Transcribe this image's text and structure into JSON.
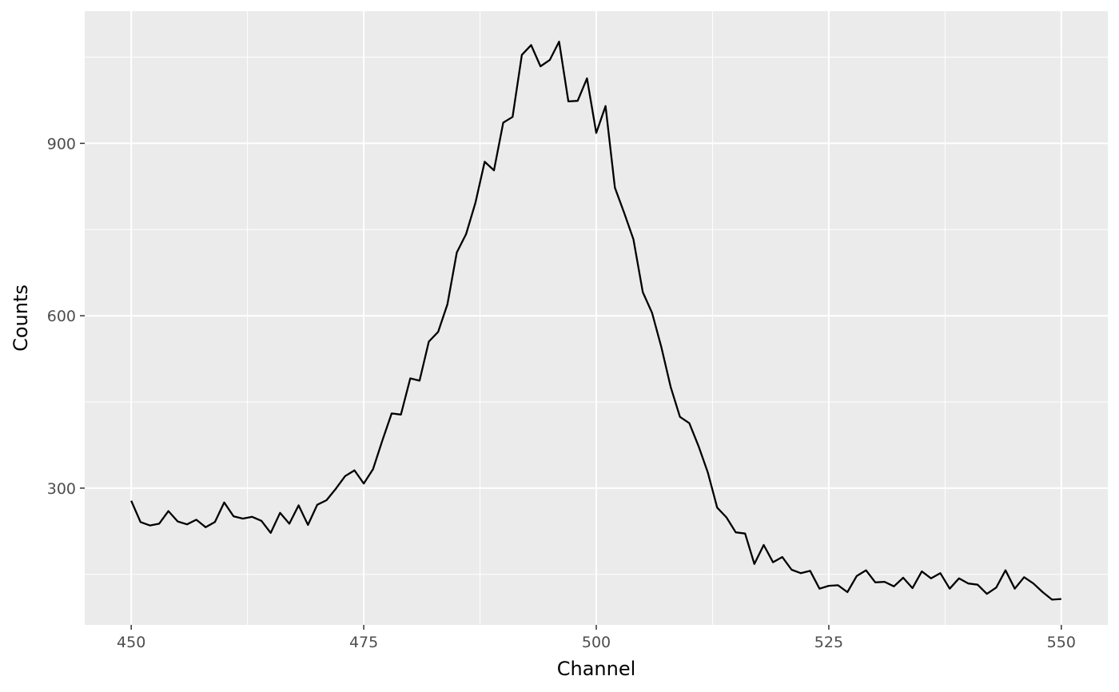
{
  "chart_data": {
    "type": "line",
    "title": "",
    "xlabel": "Channel",
    "ylabel": "Counts",
    "xlim": [
      445,
      555
    ],
    "ylim": [
      62,
      1130
    ],
    "x_ticks": [
      450,
      475,
      500,
      525,
      550
    ],
    "y_ticks": [
      300,
      600,
      900
    ],
    "x_minor_ticks": [
      462.5,
      487.5,
      512.5,
      537.5
    ],
    "y_minor_ticks": [
      150,
      450,
      750,
      1050
    ],
    "grid": true,
    "legend": "none",
    "colors": {
      "panel": "#ebebeb",
      "grid": "#ffffff",
      "line": "#000000",
      "tick_text": "#4d4d4d",
      "tick_mark": "#333333"
    },
    "series": [
      {
        "x": [
          450,
          451,
          452,
          453,
          454,
          455,
          456,
          457,
          458,
          459,
          460,
          461,
          462,
          463,
          464,
          465,
          466,
          467,
          468,
          469,
          470,
          471,
          472,
          473,
          474,
          475,
          476,
          477,
          478,
          479,
          480,
          481,
          482,
          483,
          484,
          485,
          486,
          487,
          488,
          489,
          490,
          491,
          492,
          493,
          494,
          495,
          496,
          497,
          498,
          499,
          500,
          501,
          502,
          503,
          504,
          505,
          506,
          507,
          508,
          509,
          510,
          511,
          512,
          513,
          514,
          515,
          516,
          517,
          518,
          519,
          520,
          521,
          522,
          523,
          524,
          525,
          526,
          527,
          528,
          529,
          530,
          531,
          532,
          533,
          534,
          535,
          536,
          537,
          538,
          539,
          540,
          541,
          542,
          543,
          544,
          545,
          546,
          547,
          548,
          549,
          550
        ],
        "y": [
          278,
          241,
          235,
          238,
          260,
          242,
          237,
          245,
          232,
          241,
          275,
          251,
          247,
          250,
          243,
          222,
          257,
          238,
          270,
          236,
          271,
          279,
          299,
          321,
          331,
          308,
          333,
          383,
          430,
          428,
          491,
          487,
          555,
          572,
          620,
          710,
          742,
          796,
          868,
          853,
          936,
          946,
          1054,
          1071,
          1034,
          1045,
          1077,
          973,
          974,
          1013,
          918,
          965,
          823,
          779,
          733,
          641,
          605,
          545,
          476,
          424,
          413,
          373,
          327,
          266,
          249,
          223,
          221,
          168,
          201,
          171,
          180,
          158,
          152,
          156,
          125,
          130,
          131,
          119,
          147,
          157,
          136,
          137,
          129,
          144,
          126,
          155,
          143,
          152,
          125,
          143,
          134,
          132,
          116,
          127,
          157,
          125,
          145,
          134,
          119,
          106,
          107
        ]
      }
    ]
  }
}
